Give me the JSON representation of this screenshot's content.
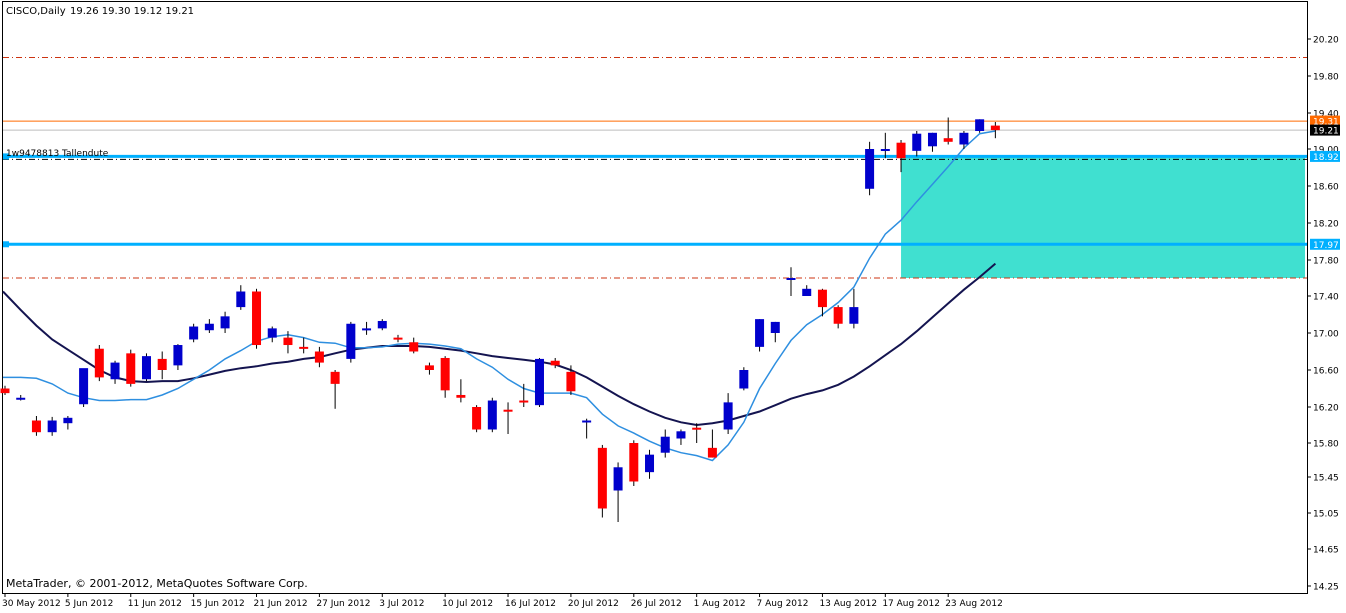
{
  "header": {
    "symbol_timeframe": "CISCO,Daily",
    "ohlc": "19.26 19.30 19.12 19.21"
  },
  "footer": {
    "copyright": "MetaTrader, © 2001-2012, MetaQuotes Software Corp."
  },
  "colors": {
    "bull": "#0000cc",
    "bear": "#ff0000",
    "ma_fast": "#2e8fe0",
    "ma_slow": "#141450",
    "resistance": "#00b0ff",
    "zone_fill": "#40e0d0",
    "dashdot": "#cc3311",
    "price_orange": "#ff6a00",
    "current_price_bg": "#000000"
  },
  "chart_data": {
    "type": "candlestick",
    "title": "CISCO,Daily",
    "yaxis": {
      "ticks": [
        "20.20",
        "19.80",
        "19.40",
        "19.00",
        "18.60",
        "18.20",
        "17.80",
        "17.40",
        "17.00",
        "16.60",
        "16.20",
        "15.80",
        "15.45",
        "15.05",
        "14.65",
        "14.25"
      ],
      "range": [
        14.25,
        20.45
      ]
    },
    "xaxis": {
      "ticks": [
        "30 May 2012",
        "5 Jun 2012",
        "11 Jun 2012",
        "15 Jun 2012",
        "21 Jun 2012",
        "27 Jun 2012",
        "3 Jul 2012",
        "10 Jul 2012",
        "16 Jul 2012",
        "20 Jul 2012",
        "26 Jul 2012",
        "1 Aug 2012",
        "7 Aug 2012",
        "13 Aug 2012",
        "17 Aug 2012",
        "23 Aug 2012"
      ]
    },
    "candles": [
      [
        16.4,
        16.43,
        16.33,
        16.35
      ],
      [
        16.3,
        16.33,
        16.27,
        16.3
      ],
      [
        16.05,
        16.1,
        15.88,
        15.92
      ],
      [
        15.92,
        16.09,
        15.88,
        16.05
      ],
      [
        16.02,
        16.1,
        15.95,
        16.08
      ],
      [
        16.23,
        16.6,
        16.2,
        16.62
      ],
      [
        16.83,
        16.87,
        16.48,
        16.52
      ],
      [
        16.5,
        16.7,
        16.45,
        16.68
      ],
      [
        16.78,
        16.82,
        16.42,
        16.45
      ],
      [
        16.5,
        16.78,
        16.48,
        16.75
      ],
      [
        16.72,
        16.8,
        16.5,
        16.6
      ],
      [
        16.65,
        16.88,
        16.6,
        16.87
      ],
      [
        16.93,
        17.1,
        16.9,
        17.07
      ],
      [
        17.03,
        17.15,
        17.0,
        17.1
      ],
      [
        17.05,
        17.23,
        17.0,
        17.18
      ],
      [
        17.28,
        17.52,
        17.25,
        17.45
      ],
      [
        17.45,
        17.48,
        16.83,
        16.87
      ],
      [
        16.95,
        17.07,
        16.9,
        17.05
      ],
      [
        16.95,
        17.02,
        16.78,
        16.87
      ],
      [
        16.85,
        16.95,
        16.78,
        16.83
      ],
      [
        16.8,
        16.85,
        16.63,
        16.68
      ],
      [
        16.58,
        16.6,
        16.18,
        16.45
      ],
      [
        16.72,
        17.12,
        16.68,
        17.1
      ],
      [
        17.05,
        17.12,
        16.98,
        17.05
      ],
      [
        17.05,
        17.15,
        17.03,
        17.13
      ],
      [
        16.95,
        16.98,
        16.9,
        16.93
      ],
      [
        16.9,
        16.95,
        16.78,
        16.8
      ],
      [
        16.65,
        16.68,
        16.55,
        16.6
      ],
      [
        16.73,
        16.75,
        16.3,
        16.38
      ],
      [
        16.33,
        16.5,
        16.25,
        16.3
      ],
      [
        16.2,
        16.22,
        15.92,
        15.95
      ],
      [
        15.95,
        16.3,
        15.92,
        16.27
      ],
      [
        16.17,
        16.25,
        15.9,
        16.15
      ],
      [
        16.27,
        16.45,
        16.2,
        16.25
      ],
      [
        16.22,
        16.73,
        16.2,
        16.72
      ],
      [
        16.7,
        16.73,
        16.62,
        16.65
      ],
      [
        16.58,
        16.65,
        16.33,
        16.37
      ],
      [
        16.05,
        16.07,
        15.85,
        16.05
      ],
      [
        15.75,
        15.78,
        15.0,
        15.1
      ],
      [
        15.3,
        15.6,
        14.95,
        15.55
      ],
      [
        15.8,
        15.83,
        15.35,
        15.4
      ],
      [
        15.5,
        15.73,
        15.43,
        15.68
      ],
      [
        15.7,
        15.95,
        15.65,
        15.87
      ],
      [
        15.85,
        15.95,
        15.78,
        15.93
      ],
      [
        15.97,
        16.02,
        15.8,
        15.95
      ],
      [
        15.75,
        15.95,
        15.65,
        15.65
      ],
      [
        15.95,
        16.35,
        15.9,
        16.25
      ],
      [
        16.4,
        16.63,
        16.38,
        16.6
      ],
      [
        16.85,
        17.15,
        16.8,
        17.15
      ],
      [
        17.0,
        17.12,
        16.9,
        17.12
      ],
      [
        17.6,
        17.72,
        17.4,
        17.6
      ],
      [
        17.4,
        17.52,
        17.4,
        17.48
      ],
      [
        17.47,
        17.48,
        17.18,
        17.28
      ],
      [
        17.28,
        17.3,
        17.05,
        17.1
      ],
      [
        17.1,
        17.48,
        17.05,
        17.28
      ],
      [
        18.57,
        19.08,
        18.5,
        19.0
      ],
      [
        19.0,
        19.18,
        18.9,
        19.0
      ],
      [
        19.07,
        19.1,
        18.75,
        18.9
      ],
      [
        18.98,
        19.2,
        18.92,
        19.17
      ],
      [
        19.03,
        19.18,
        18.97,
        19.18
      ],
      [
        19.12,
        19.35,
        19.05,
        19.08
      ],
      [
        19.05,
        19.2,
        19.0,
        19.18
      ],
      [
        19.2,
        19.33,
        19.18,
        19.33
      ],
      [
        19.26,
        19.3,
        19.12,
        19.21
      ]
    ],
    "ma_fast": [
      16.52,
      16.52,
      16.51,
      16.45,
      16.35,
      16.3,
      16.27,
      16.27,
      16.28,
      16.28,
      16.33,
      16.4,
      16.5,
      16.6,
      16.72,
      16.81,
      16.91,
      16.96,
      16.98,
      16.95,
      16.9,
      16.89,
      16.84,
      16.84,
      16.85,
      16.88,
      16.89,
      16.88,
      16.86,
      16.83,
      16.72,
      16.63,
      16.5,
      16.4,
      16.35,
      16.35,
      16.35,
      16.3,
      16.12,
      15.99,
      15.91,
      15.82,
      15.75,
      15.7,
      15.67,
      15.62,
      15.78,
      16.03,
      16.4,
      16.67,
      16.92,
      17.09,
      17.2,
      17.33,
      17.5,
      17.82,
      18.08,
      18.23,
      18.43,
      18.62,
      18.81,
      19.01,
      19.17,
      19.2
    ],
    "ma_slow": [
      17.45,
      17.25,
      17.08,
      16.93,
      16.82,
      16.71,
      16.6,
      16.52,
      16.48,
      16.47,
      16.48,
      16.48,
      16.51,
      16.55,
      16.59,
      16.62,
      16.64,
      16.67,
      16.69,
      16.72,
      16.74,
      16.78,
      16.82,
      16.84,
      16.86,
      16.86,
      16.86,
      16.85,
      16.83,
      16.81,
      16.78,
      16.75,
      16.73,
      16.71,
      16.69,
      16.66,
      16.6,
      16.52,
      16.42,
      16.32,
      16.23,
      16.15,
      16.08,
      16.03,
      16.0,
      16.02,
      16.05,
      16.1,
      16.15,
      16.22,
      16.29,
      16.34,
      16.38,
      16.44,
      16.53,
      16.64,
      16.76,
      16.88,
      17.02,
      17.17,
      17.32,
      17.47,
      17.61,
      17.76
    ],
    "levels": {
      "upper_dashdot": 20.0,
      "orange_line": 19.31,
      "current_price": 19.21,
      "resistance_upper": 18.92,
      "resistance_lower": 17.97,
      "lower_dashdot": 17.6,
      "zone": {
        "start_bar": 57,
        "top": 18.92,
        "bottom": 17.6
      }
    },
    "price_labels": {
      "orange": "19.31",
      "current": "19.21",
      "resistance_upper": "18.92",
      "resistance_lower": "17.97"
    },
    "trendline_label": "1w9478813 Tallendute"
  }
}
